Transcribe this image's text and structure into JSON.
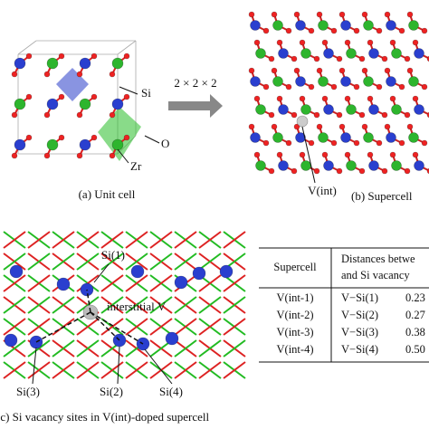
{
  "panel_a": {
    "labels": {
      "si": "Si",
      "o": "O",
      "zr": "Zr"
    },
    "caption": "(a) Unit cell"
  },
  "arrow_label": "2 × 2 × 2",
  "panel_b": {
    "label": "V(int)",
    "caption": "(b) Supercell"
  },
  "panel_c": {
    "labels": [
      "Si(1)",
      "interstitial V",
      "Si(3)",
      "Si(2)",
      "Si(4)"
    ],
    "caption": "(c) Si vacancy sites in V(int)-doped supercell"
  },
  "table": {
    "header": [
      "Supercell",
      "Distances betwe",
      "and Si vacancy"
    ],
    "rows": [
      [
        "V(int-1)",
        "V−Si(1)",
        "0.23"
      ],
      [
        "V(int-2)",
        "V−Si(2)",
        "0.27"
      ],
      [
        "V(int-3)",
        "V−Si(3)",
        "0.38"
      ],
      [
        "V(int-4)",
        "V−Si(4)",
        "0.50"
      ]
    ]
  }
}
